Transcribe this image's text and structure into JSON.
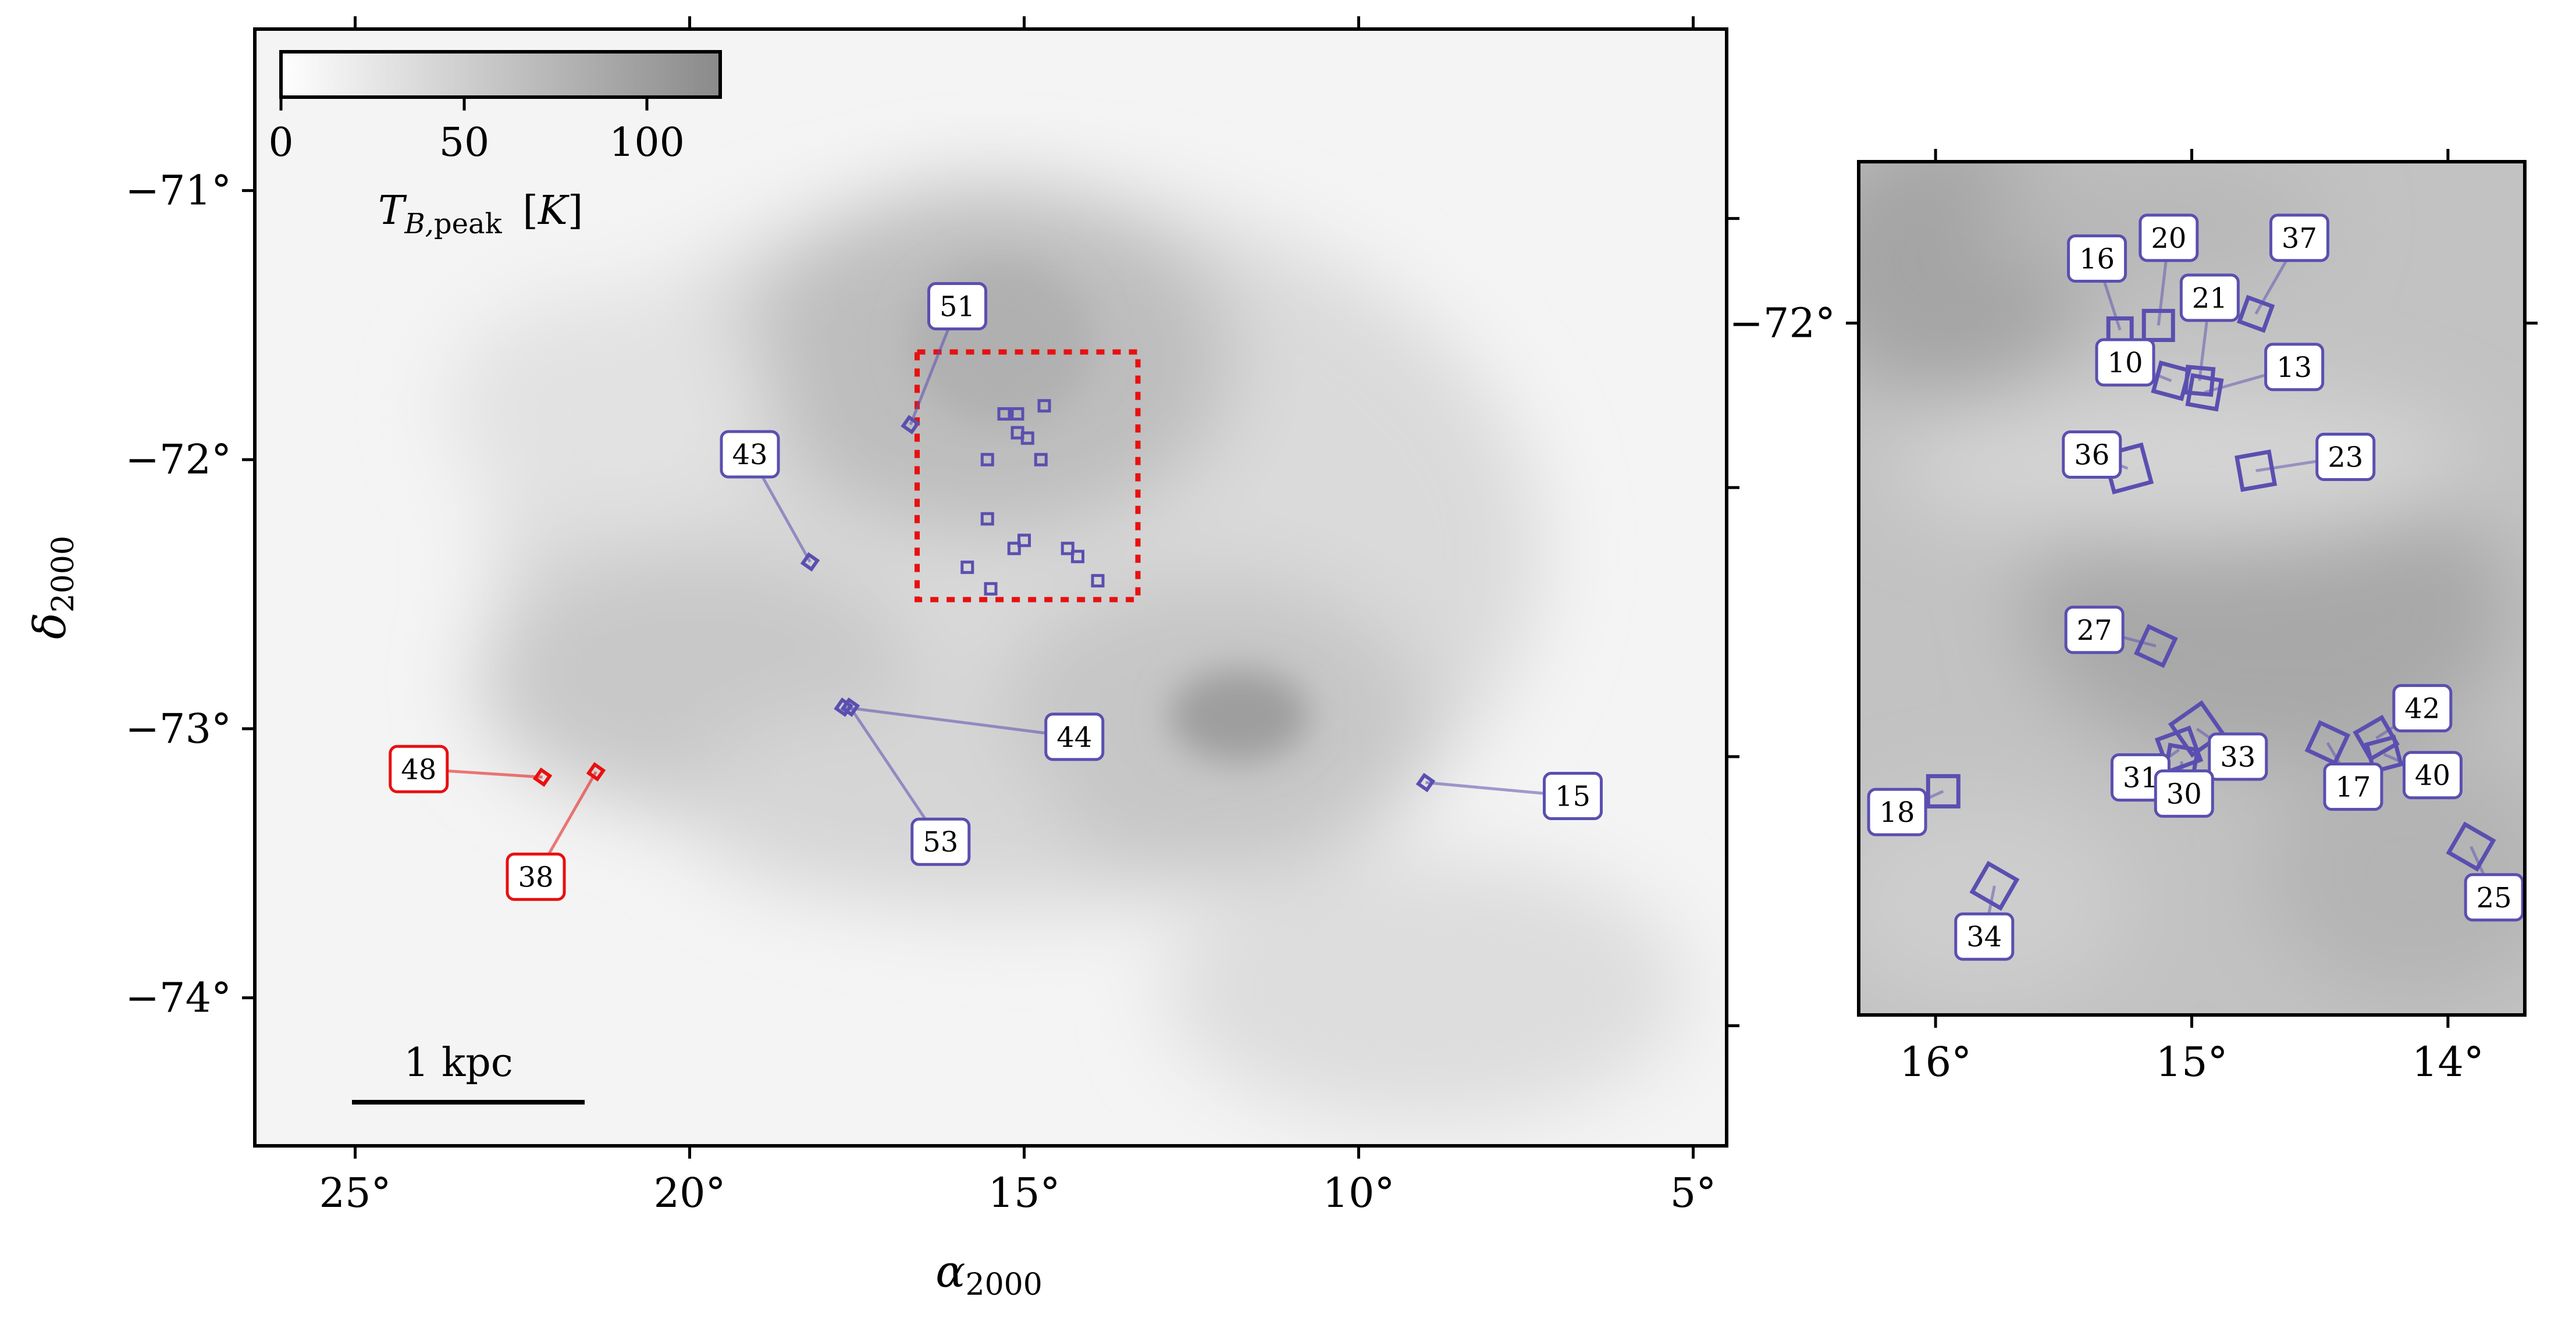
{
  "colors": {
    "purple": "#5a4fb0",
    "red": "#e81010",
    "selection_box": "#e81010",
    "axis": "#000000"
  },
  "chart_data": [
    {
      "type": "scatter",
      "xlabel": "α2000",
      "ylabel": "δ2000",
      "xlim": [
        26.5,
        4.5
      ],
      "ylim": [
        -74.55,
        -70.4
      ],
      "x_ticks": [
        {
          "value": 25,
          "label": "25°"
        },
        {
          "value": 20,
          "label": "20°"
        },
        {
          "value": 15,
          "label": "15°"
        },
        {
          "value": 10,
          "label": "10°"
        },
        {
          "value": 5,
          "label": "5°"
        }
      ],
      "y_ticks": [
        {
          "value": -71,
          "label": "−71°"
        },
        {
          "value": -72,
          "label": "−72°"
        },
        {
          "value": -73,
          "label": "−73°"
        },
        {
          "value": -74,
          "label": "−74°"
        }
      ],
      "colorbar": {
        "min": 0,
        "max": 120,
        "ticks": [
          0,
          50,
          100
        ],
        "label": "T_B,peak [K]"
      },
      "scalebar": {
        "label": "1 kpc"
      },
      "selection_box": {
        "ra": [
          16.6,
          13.3
        ],
        "dec": [
          -71.6,
          -72.52
        ]
      },
      "labelled_sources": [
        {
          "id": "51",
          "ra": 16.7,
          "dec": -71.87,
          "label_ra": 16.0,
          "label_dec": -71.43,
          "color": "purple"
        },
        {
          "id": "43",
          "ra": 18.2,
          "dec": -72.38,
          "label_ra": 19.1,
          "label_dec": -71.98,
          "color": "purple"
        },
        {
          "id": "44",
          "ra": 17.7,
          "dec": -72.92,
          "label_ra": 14.25,
          "label_dec": -73.03,
          "color": "purple"
        },
        {
          "id": "53",
          "ra": 17.6,
          "dec": -72.92,
          "label_ra": 16.25,
          "label_dec": -73.42,
          "color": "purple"
        },
        {
          "id": "15",
          "ra": 9.0,
          "dec": -73.2,
          "label_ra": 6.8,
          "label_dec": -73.25,
          "color": "purple"
        },
        {
          "id": "48",
          "ra": 22.2,
          "dec": -73.18,
          "label_ra": 24.05,
          "label_dec": -73.15,
          "color": "red"
        },
        {
          "id": "38",
          "ra": 21.4,
          "dec": -73.16,
          "label_ra": 22.3,
          "label_dec": -73.55,
          "color": "red"
        }
      ],
      "unlabelled_sources": [
        {
          "ra": 15.3,
          "dec": -71.83
        },
        {
          "ra": 15.1,
          "dec": -71.83
        },
        {
          "ra": 14.7,
          "dec": -71.8
        },
        {
          "ra": 15.1,
          "dec": -71.9
        },
        {
          "ra": 14.95,
          "dec": -71.92
        },
        {
          "ra": 15.55,
          "dec": -72.0
        },
        {
          "ra": 14.75,
          "dec": -72.0
        },
        {
          "ra": 15.55,
          "dec": -72.22
        },
        {
          "ra": 15.15,
          "dec": -72.33
        },
        {
          "ra": 15.0,
          "dec": -72.3
        },
        {
          "ra": 14.35,
          "dec": -72.33
        },
        {
          "ra": 14.2,
          "dec": -72.36
        },
        {
          "ra": 15.85,
          "dec": -72.4
        },
        {
          "ra": 15.5,
          "dec": -72.48
        },
        {
          "ra": 13.9,
          "dec": -72.45
        }
      ]
    },
    {
      "type": "scatter",
      "xlim": [
        16.3,
        13.7
      ],
      "ylim": [
        -72.3,
        -71.93
      ],
      "x_ticks": [
        {
          "value": 16,
          "label": "16°"
        },
        {
          "value": 15,
          "label": "15°"
        },
        {
          "value": 14,
          "label": "14°"
        }
      ],
      "y_ticks": [
        {
          "value": -72,
          "label": "−72°"
        }
      ],
      "sources": [
        {
          "id": "16",
          "ra": 15.28,
          "dec": -72.003,
          "size": 40,
          "angle": 0,
          "label_ra": 15.37,
          "label_dec": -71.972
        },
        {
          "id": "20",
          "ra": 15.13,
          "dec": -72.001,
          "size": 50,
          "angle": 0,
          "label_ra": 15.09,
          "label_dec": -71.963
        },
        {
          "id": "37",
          "ra": 14.75,
          "dec": -71.996,
          "size": 44,
          "angle": 20,
          "label_ra": 14.58,
          "label_dec": -71.963
        },
        {
          "id": "21",
          "ra": 14.97,
          "dec": -72.025,
          "size": 44,
          "angle": 5,
          "label_ra": 14.93,
          "label_dec": -71.989
        },
        {
          "id": "10",
          "ra": 15.08,
          "dec": -72.025,
          "size": 50,
          "angle": 15,
          "label_ra": 15.26,
          "label_dec": -72.017
        },
        {
          "id": "13",
          "ra": 14.95,
          "dec": -72.03,
          "size": 50,
          "angle": 10,
          "label_ra": 14.6,
          "label_dec": -72.019
        },
        {
          "id": "36",
          "ra": 15.25,
          "dec": -72.063,
          "size": 66,
          "angle": -15,
          "label_ra": 15.39,
          "label_dec": -72.057
        },
        {
          "id": "23",
          "ra": 14.75,
          "dec": -72.064,
          "size": 56,
          "angle": -10,
          "label_ra": 14.4,
          "label_dec": -72.058
        },
        {
          "id": "27",
          "ra": 15.14,
          "dec": -72.14,
          "size": 50,
          "angle": 25,
          "label_ra": 15.38,
          "label_dec": -72.133
        },
        {
          "id": "33",
          "ra": 14.98,
          "dec": -72.176,
          "size": 64,
          "angle": -35,
          "label_ra": 14.82,
          "label_dec": -72.188
        },
        {
          "id": "31",
          "ra": 15.05,
          "dec": -72.185,
          "size": 58,
          "angle": -20,
          "label_ra": 15.2,
          "label_dec": -72.197
        },
        {
          "id": "30",
          "ra": 15.04,
          "dec": -72.19,
          "size": 48,
          "angle": 10,
          "label_ra": 15.03,
          "label_dec": -72.204
        },
        {
          "id": "42",
          "ra": 14.28,
          "dec": -72.18,
          "size": 52,
          "angle": -30,
          "label_ra": 14.1,
          "label_dec": -72.167
        },
        {
          "id": "17",
          "ra": 14.47,
          "dec": -72.182,
          "size": 52,
          "angle": 25,
          "label_ra": 14.37,
          "label_dec": -72.201
        },
        {
          "id": "40",
          "ra": 14.25,
          "dec": -72.187,
          "size": 48,
          "angle": -15,
          "label_ra": 14.06,
          "label_dec": -72.196
        },
        {
          "id": "18",
          "ra": 15.97,
          "dec": -72.203,
          "size": 52,
          "angle": 0,
          "label_ra": 16.15,
          "label_dec": -72.212
        },
        {
          "id": "25",
          "ra": 13.91,
          "dec": -72.227,
          "size": 56,
          "angle": 30,
          "label_ra": 13.82,
          "label_dec": -72.249
        },
        {
          "id": "34",
          "ra": 15.77,
          "dec": -72.244,
          "size": 56,
          "angle": 30,
          "label_ra": 15.81,
          "label_dec": -72.266
        }
      ]
    }
  ]
}
